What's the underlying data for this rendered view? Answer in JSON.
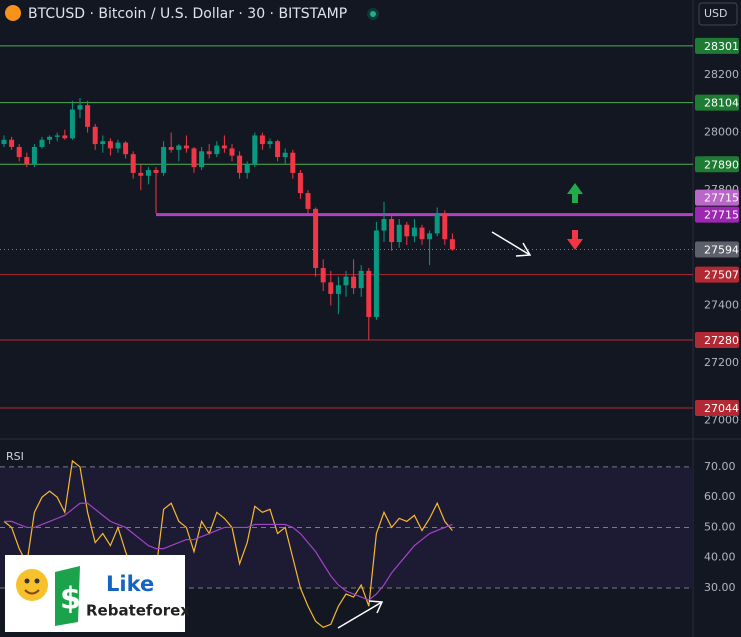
{
  "header": {
    "title": "BTCUSD · Bitcoin / U.S. Dollar · 30 · BITSTAMP",
    "currency": "USD"
  },
  "chart_data": [
    {
      "type": "candlestick",
      "up_color": "#089981",
      "down_color": "#f23645",
      "ylim": [
        26940,
        28460
      ],
      "yticks": [
        27000,
        27200,
        27400,
        27800,
        28000,
        28200
      ],
      "ohlc": [
        [
          27960,
          27990,
          27950,
          27975
        ],
        [
          27975,
          27985,
          27940,
          27950
        ],
        [
          27950,
          27960,
          27900,
          27915
        ],
        [
          27915,
          27930,
          27880,
          27890
        ],
        [
          27890,
          27960,
          27880,
          27950
        ],
        [
          27950,
          27985,
          27945,
          27975
        ],
        [
          27975,
          27990,
          27960,
          27985
        ],
        [
          27985,
          28000,
          27970,
          27990
        ],
        [
          27990,
          28010,
          27975,
          27980
        ],
        [
          27980,
          28110,
          27975,
          28080
        ],
        [
          28080,
          28120,
          28050,
          28095
        ],
        [
          28095,
          28110,
          28000,
          28020
        ],
        [
          28020,
          28030,
          27940,
          27960
        ],
        [
          27960,
          27990,
          27930,
          27970
        ],
        [
          27970,
          27980,
          27920,
          27945
        ],
        [
          27945,
          27975,
          27930,
          27965
        ],
        [
          27965,
          27970,
          27910,
          27925
        ],
        [
          27925,
          27935,
          27840,
          27860
        ],
        [
          27860,
          27890,
          27800,
          27850
        ],
        [
          27850,
          27880,
          27820,
          27870
        ],
        [
          27870,
          27880,
          27720,
          27860
        ],
        [
          27860,
          27970,
          27850,
          27950
        ],
        [
          27950,
          28000,
          27930,
          27940
        ],
        [
          27940,
          27960,
          27900,
          27955
        ],
        [
          27955,
          27990,
          27930,
          27945
        ],
        [
          27945,
          27950,
          27860,
          27880
        ],
        [
          27880,
          27950,
          27870,
          27935
        ],
        [
          27935,
          27960,
          27910,
          27925
        ],
        [
          27925,
          27970,
          27915,
          27955
        ],
        [
          27955,
          27990,
          27930,
          27945
        ],
        [
          27945,
          27960,
          27900,
          27920
        ],
        [
          27920,
          27935,
          27840,
          27860
        ],
        [
          27860,
          27900,
          27840,
          27890
        ],
        [
          27890,
          28000,
          27880,
          27990
        ],
        [
          27990,
          28000,
          27940,
          27960
        ],
        [
          27960,
          27980,
          27945,
          27970
        ],
        [
          27970,
          27975,
          27900,
          27915
        ],
        [
          27915,
          27945,
          27890,
          27930
        ],
        [
          27930,
          27940,
          27840,
          27860
        ],
        [
          27860,
          27870,
          27770,
          27790
        ],
        [
          27790,
          27800,
          27720,
          27735
        ],
        [
          27735,
          27740,
          27500,
          27530
        ],
        [
          27530,
          27560,
          27450,
          27480
        ],
        [
          27480,
          27520,
          27400,
          27440
        ],
        [
          27440,
          27500,
          27370,
          27470
        ],
        [
          27470,
          27520,
          27430,
          27500
        ],
        [
          27500,
          27560,
          27440,
          27460
        ],
        [
          27460,
          27540,
          27430,
          27520
        ],
        [
          27520,
          27530,
          27280,
          27360
        ],
        [
          27360,
          27690,
          27350,
          27660
        ],
        [
          27660,
          27760,
          27620,
          27700
        ],
        [
          27700,
          27710,
          27590,
          27620
        ],
        [
          27620,
          27700,
          27600,
          27680
        ],
        [
          27680,
          27690,
          27610,
          27640
        ],
        [
          27640,
          27700,
          27620,
          27670
        ],
        [
          27670,
          27680,
          27610,
          27630
        ],
        [
          27630,
          27660,
          27540,
          27650
        ],
        [
          27650,
          27740,
          27640,
          27720
        ],
        [
          27720,
          27730,
          27610,
          27630
        ],
        [
          27630,
          27650,
          27590,
          27594
        ]
      ],
      "levels": [
        {
          "value": 28301,
          "color": "#4caf50",
          "label_color": "#1e7b34"
        },
        {
          "value": 28104,
          "color": "#4caf50",
          "label_color": "#1e7b34"
        },
        {
          "value": 27890,
          "color": "#4caf50",
          "label_color": "#1e7b34"
        },
        {
          "value": 27715,
          "color": "#b53fc3",
          "label_color": "#9c27b0",
          "start": 20
        },
        {
          "value": 27715,
          "color": "#ba68c8",
          "label_color": "#ba68c8",
          "line": false
        },
        {
          "value": 27594,
          "color": "#787b86",
          "label_color": "#5d606b",
          "style": "dotted"
        },
        {
          "value": 27507,
          "color": "#b22833",
          "label_color": "#b22833"
        },
        {
          "value": 27280,
          "color": "#b22833",
          "label_color": "#b22833"
        },
        {
          "value": 27044,
          "color": "#b22833",
          "label_color": "#b22833"
        }
      ]
    },
    {
      "type": "line",
      "title": "RSI",
      "ylim": [
        13.8,
        78.9
      ],
      "yticks": [
        {
          "value": 30,
          "label": "30.00"
        },
        {
          "value": 40,
          "label": "40.00"
        },
        {
          "value": 50,
          "label": "50.00"
        },
        {
          "value": 60,
          "label": "60.00"
        },
        {
          "value": 70,
          "label": "70.00"
        }
      ],
      "band": [
        30,
        70
      ],
      "dashed": [
        30,
        50,
        70
      ],
      "lines": [
        {
          "color": "#f7b92f",
          "values": [
            52,
            50,
            43,
            38,
            55,
            60,
            62,
            60,
            55,
            72,
            70,
            55,
            45,
            48,
            44,
            50,
            42,
            35,
            38,
            40,
            36,
            56,
            58,
            52,
            50,
            42,
            52,
            48,
            55,
            53,
            50,
            38,
            45,
            57,
            55,
            56,
            48,
            50,
            40,
            30,
            24,
            19,
            17,
            18,
            24,
            28,
            27,
            31,
            24,
            48,
            55,
            50,
            53,
            52,
            54,
            49,
            53,
            58,
            52,
            49
          ]
        },
        {
          "color": "#a044c8",
          "values": [
            52,
            52,
            51,
            50,
            50,
            51,
            52,
            53,
            54,
            56,
            58,
            58,
            56,
            54,
            52,
            51,
            50,
            48,
            46,
            44,
            43,
            43,
            44,
            45,
            46,
            46,
            47,
            48,
            49,
            50,
            50,
            50,
            50,
            51,
            51,
            51,
            51,
            51,
            50,
            48,
            45,
            42,
            38,
            34,
            31,
            29,
            28,
            27,
            26,
            28,
            31,
            35,
            38,
            41,
            44,
            46,
            48,
            49,
            50,
            51
          ]
        }
      ]
    }
  ],
  "logo": {
    "line1": "Like",
    "line2": "Rebateforex"
  }
}
